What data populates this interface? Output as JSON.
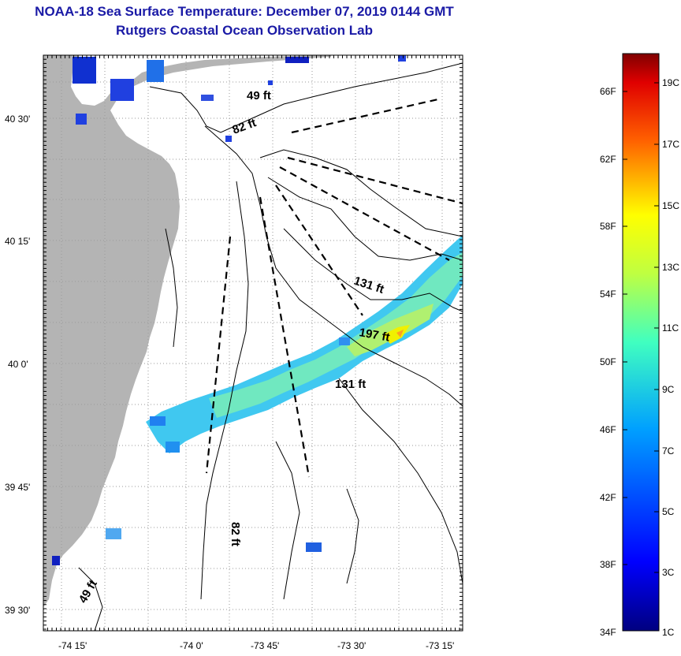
{
  "title": "NOAA-18 Sea Surface Temperature:  December 07, 2019 0144 GMT",
  "subtitle": "Rutgers Coastal Ocean Observation Lab",
  "map": {
    "lat_ticks": [
      "40 30'",
      "40 15'",
      "40 0'",
      "39 45'",
      "39 30'"
    ],
    "lon_ticks": [
      "-74 15'",
      "-74 0'",
      "-73 45'",
      "-73 30'",
      "-73 15'"
    ],
    "depth_labels": [
      "49 ft",
      "82 ft",
      "131 ft",
      "197 ft",
      "131 ft",
      "82 ft",
      "49 ft"
    ],
    "colors": {
      "land": "#b4b4b4",
      "grid": "#9a9a9a",
      "contour": "#000000"
    }
  },
  "colorbar": {
    "fahrenheit": [
      "66F",
      "62F",
      "58F",
      "54F",
      "50F",
      "46F",
      "42F",
      "38F",
      "34F"
    ],
    "celsius": [
      "19C",
      "17C",
      "15C",
      "13C",
      "11C",
      "9C",
      "7C",
      "5C",
      "3C",
      "1C"
    ],
    "colors": [
      "#800000",
      "#ff0000",
      "#ff8000",
      "#ffff00",
      "#80ff80",
      "#00ffff",
      "#0080ff",
      "#0000ff",
      "#000080"
    ]
  }
}
